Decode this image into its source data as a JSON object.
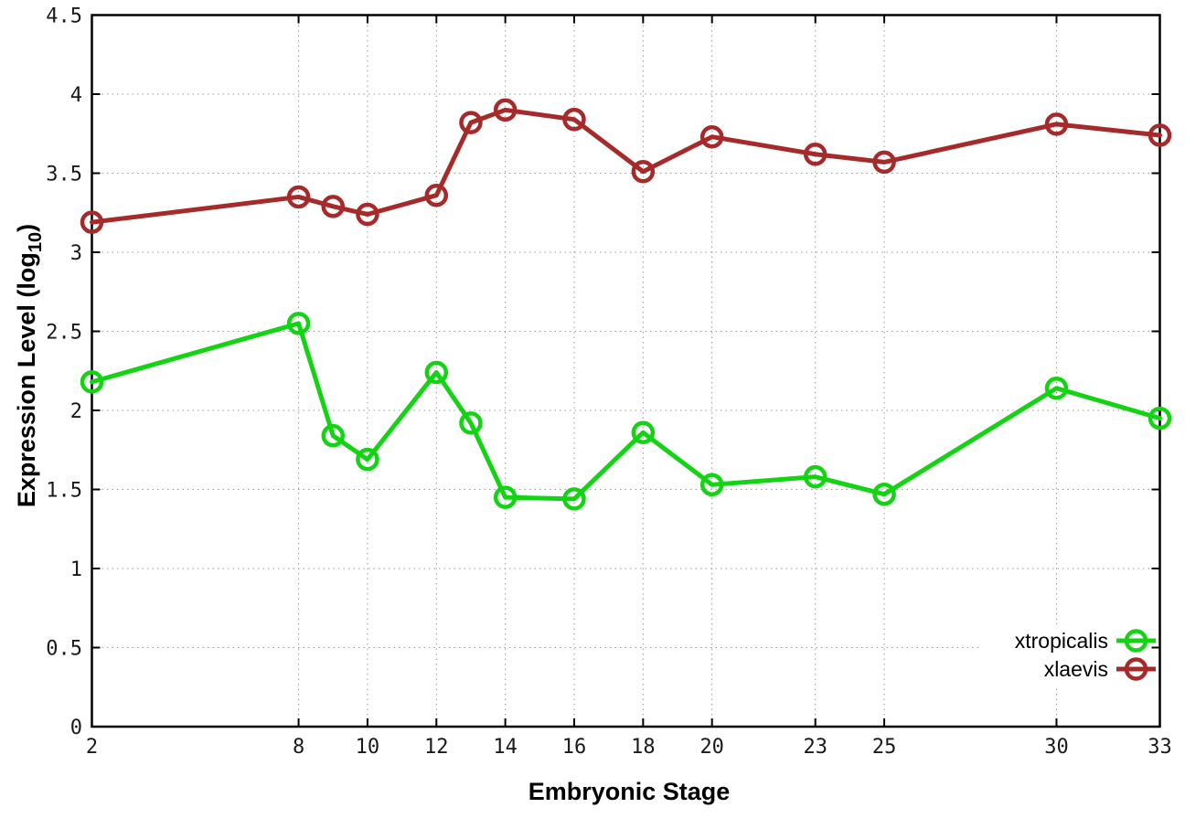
{
  "chart_data": {
    "type": "line",
    "title": "",
    "xlabel": "Embryonic Stage",
    "ylabel": "Expression Level (log10)",
    "ylabel_parts": {
      "prefix": "Expression Level (log",
      "subscript": "10",
      "suffix": ")"
    },
    "x": [
      2,
      8,
      9,
      10,
      12,
      13,
      14,
      16,
      18,
      20,
      23,
      25,
      30,
      33
    ],
    "series": [
      {
        "name": "xtropicalis",
        "color": "#12d412",
        "values": [
          2.18,
          2.55,
          1.84,
          1.69,
          2.24,
          1.92,
          1.45,
          1.44,
          1.86,
          1.53,
          1.58,
          1.47,
          2.14,
          1.95
        ]
      },
      {
        "name": "xlaevis",
        "color": "#a62a2a",
        "values": [
          3.19,
          3.35,
          3.29,
          3.24,
          3.36,
          3.82,
          3.9,
          3.84,
          3.51,
          3.73,
          3.62,
          3.57,
          3.81,
          3.74
        ]
      }
    ],
    "xticks": [
      2,
      8,
      10,
      12,
      14,
      16,
      18,
      20,
      23,
      25,
      30,
      33
    ],
    "xtick_labels": [
      "2",
      "8",
      "10",
      "12",
      "14",
      "16",
      "18",
      "20",
      "23",
      "25",
      "30",
      "33"
    ],
    "yticks": [
      0,
      0.5,
      1,
      1.5,
      2,
      2.5,
      3,
      3.5,
      4,
      4.5
    ],
    "ytick_labels": [
      "0",
      "0.5",
      "1",
      "1.5",
      "2",
      "2.5",
      "3",
      "3.5",
      "4",
      "4.5"
    ],
    "xlim": [
      2,
      33
    ],
    "ylim": [
      0,
      4.5
    ],
    "grid": true,
    "legend_position": "bottom-right",
    "marker": "open-circle",
    "line_style": "linespoints",
    "background_color": "#ffffff",
    "axis_color": "#000000",
    "grid_color": "#999999"
  }
}
